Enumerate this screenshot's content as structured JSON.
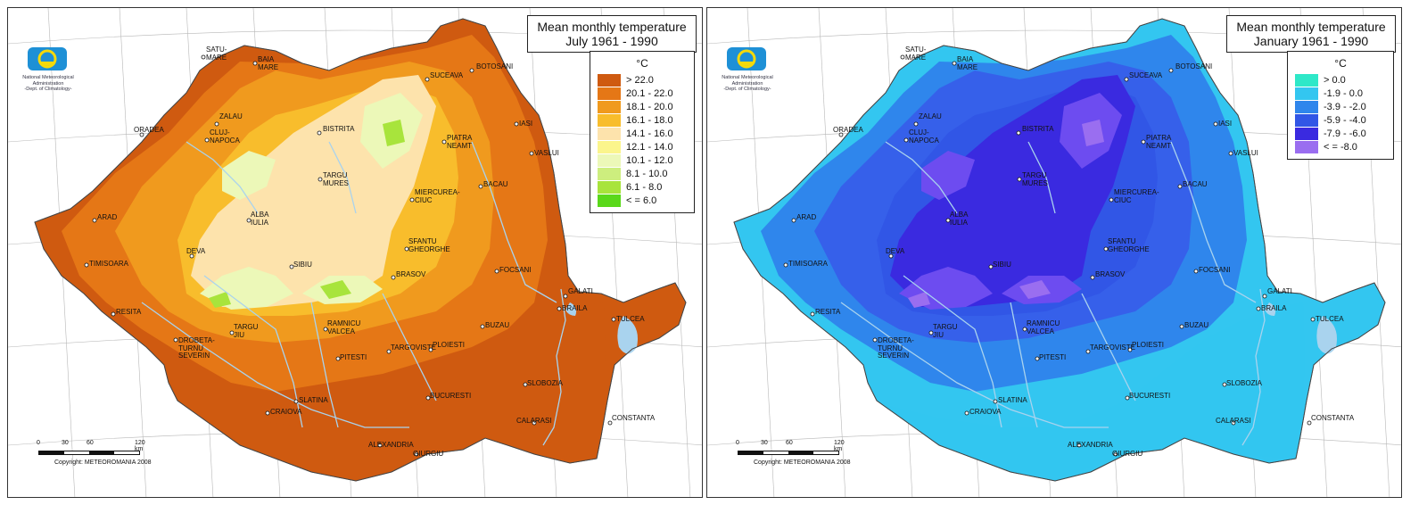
{
  "maps": [
    {
      "title_line1": "Mean monthly temperature",
      "title_line2": "July 1961 - 1990",
      "legend_unit": "°C",
      "legend": [
        {
          "label": "> 22.0",
          "color": "#cf5a10"
        },
        {
          "label": "20.1 - 22.0",
          "color": "#e57716"
        },
        {
          "label": "18.1 - 20.0",
          "color": "#f09a1e"
        },
        {
          "label": "16.1 - 18.0",
          "color": "#f8bd2c"
        },
        {
          "label": "14.1 - 16.0",
          "color": "#fde3ac"
        },
        {
          "label": "12.1 - 14.0",
          "color": "#fbf58c"
        },
        {
          "label": "10.1 - 12.0",
          "color": "#ecf8b8"
        },
        {
          "label": "8.1 - 10.0",
          "color": "#cdee7e"
        },
        {
          "label": "6.1 - 8.0",
          "color": "#a8e43c"
        },
        {
          "label": "< = 6.0",
          "color": "#5ad81a"
        }
      ],
      "colors": {
        "low": "#cf5a10",
        "mid": "#e57716",
        "base": "#f09a1e",
        "hill": "#f8bd2c",
        "mount": "#fde3ac",
        "peak": "#ecf8b8",
        "top": "#a8e43c",
        "water": "#a9d3ee"
      }
    },
    {
      "title_line1": "Mean monthly temperature",
      "title_line2": "January 1961 - 1990",
      "legend_unit": "°C",
      "legend": [
        {
          "label": "> 0.0",
          "color": "#2ee8c8"
        },
        {
          "label": "-1.9 - 0.0",
          "color": "#33c6f0"
        },
        {
          "label": "-3.9 - -2.0",
          "color": "#2f86ec"
        },
        {
          "label": "-5.9 - -4.0",
          "color": "#3156e6"
        },
        {
          "label": "-7.9 - -6.0",
          "color": "#3a2ae0"
        },
        {
          "label": "< = -8.0",
          "color": "#9a6ef0"
        }
      ],
      "colors": {
        "low": "#33c6f0",
        "mid": "#2f86ec",
        "base": "#3660ea",
        "hill": "#3156e6",
        "mount": "#3a2ae0",
        "peak": "#6d4cf0",
        "top": "#9a6ef0",
        "water": "#a9d3ee"
      }
    }
  ],
  "logo_text": "National Meteorological\nAdministration\n-Dept. of Climatology-",
  "scale": {
    "ticks": [
      "0",
      "30",
      "60",
      "120 km"
    ]
  },
  "copyright": "Copyright: METEOROMANIA 2008",
  "cities": [
    {
      "name": "SATU-\nMARE"
    },
    {
      "name": "BAIA\nMARE"
    },
    {
      "name": "SUCEAVA"
    },
    {
      "name": "BOTOSANI"
    },
    {
      "name": "ORADEA"
    },
    {
      "name": "ZALAU"
    },
    {
      "name": "BISTRITA"
    },
    {
      "name": "IASI"
    },
    {
      "name": "PIATRA\nNEAMT"
    },
    {
      "name": "CLUJ-\nNAPOCA"
    },
    {
      "name": "VASLUI"
    },
    {
      "name": "TARGU\nMURES"
    },
    {
      "name": "BACAU"
    },
    {
      "name": "MIERCUREA-\nCIUC"
    },
    {
      "name": "ARAD"
    },
    {
      "name": "ALBA\nIULIA"
    },
    {
      "name": "SFANTU\nGHEORGHE"
    },
    {
      "name": "DEVA"
    },
    {
      "name": "TIMISOARA"
    },
    {
      "name": "SIBIU"
    },
    {
      "name": "FOCSANI"
    },
    {
      "name": "BRASOV"
    },
    {
      "name": "GALATI"
    },
    {
      "name": "BRAILA"
    },
    {
      "name": "RESITA"
    },
    {
      "name": "TULCEA"
    },
    {
      "name": "TARGU\nJIU"
    },
    {
      "name": "RAMNICU\nVALCEA"
    },
    {
      "name": "BUZAU"
    },
    {
      "name": "DROBETA-\nTURNU\nSEVERIN"
    },
    {
      "name": "TARGOVISTE"
    },
    {
      "name": "PLOIESTI"
    },
    {
      "name": "PITESTI"
    },
    {
      "name": "SLOBOZIA"
    },
    {
      "name": "SLATINA"
    },
    {
      "name": "BUCURESTI"
    },
    {
      "name": "CRAIOVA"
    },
    {
      "name": "CALARASI"
    },
    {
      "name": "CONSTANTA"
    },
    {
      "name": "ALEXANDRIA"
    },
    {
      "name": "GIURGIU"
    }
  ]
}
